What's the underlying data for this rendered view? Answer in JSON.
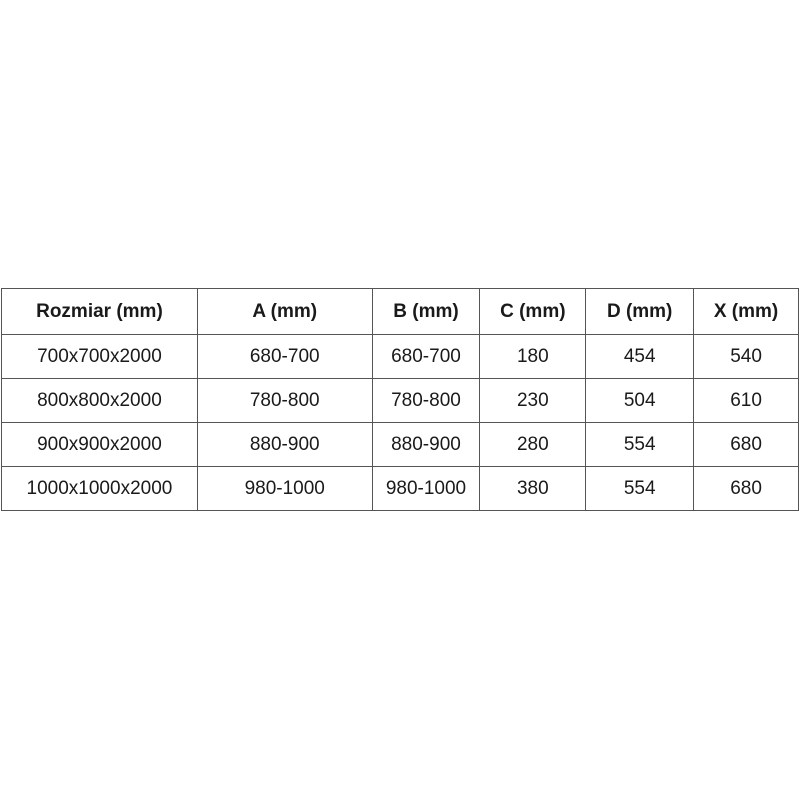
{
  "table": {
    "headers": [
      "Rozmiar (mm)",
      "A (mm)",
      "B (mm)",
      "C (mm)",
      "D (mm)",
      "X (mm)"
    ],
    "rows": [
      [
        "700x700x2000",
        "680-700",
        "680-700",
        "180",
        "454",
        "540"
      ],
      [
        "800x800x2000",
        "780-800",
        "780-800",
        "230",
        "504",
        "610"
      ],
      [
        "900x900x2000",
        "880-900",
        "880-900",
        "280",
        "554",
        "680"
      ],
      [
        "1000x1000x2000",
        "980-1000",
        "980-1000",
        "380",
        "554",
        "680"
      ]
    ]
  }
}
